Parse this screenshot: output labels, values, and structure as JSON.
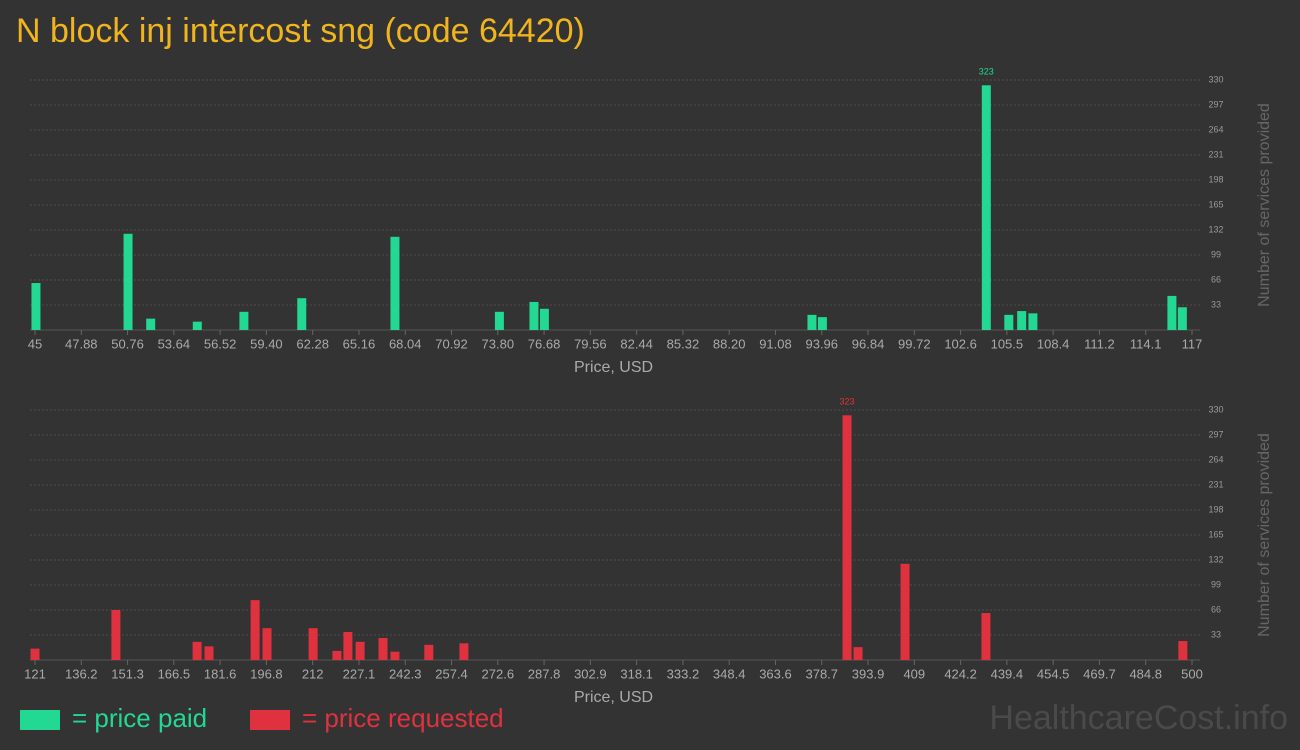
{
  "title": "N block inj intercost sng (code 64420)",
  "watermark": "HealthcareCost.info",
  "chart_data": [
    {
      "type": "bar",
      "xlabel": "Price, USD",
      "ylabel": "Number of services provided",
      "x": [
        45.06,
        50.79,
        52.2,
        55.1,
        58.0,
        61.6,
        67.4,
        73.9,
        76.05,
        76.7,
        93.35,
        94.0,
        104.2,
        105.6,
        106.4,
        107.1,
        115.75,
        116.4
      ],
      "series": [
        {
          "name": "= price paid",
          "color": "#22d892",
          "values": [
            62,
            127,
            15,
            11,
            24,
            42,
            123,
            24,
            37,
            28,
            20,
            17,
            323,
            20,
            25,
            22,
            45,
            30
          ]
        }
      ],
      "xlim": [
        45,
        117
      ],
      "xticks": [
        45,
        47.88,
        50.76,
        53.64,
        56.52,
        {
          "value": 59.4,
          "label": "59.40"
        },
        62.28,
        65.16,
        68.04,
        70.92,
        {
          "value": 73.8,
          "label": "73.80"
        },
        76.68,
        79.56,
        82.44,
        85.32,
        {
          "value": 88.2,
          "label": "88.20"
        },
        91.08,
        93.96,
        96.84,
        99.72,
        102.6,
        {
          "value": 105.48,
          "label": "105.5"
        },
        {
          "value": 108.36,
          "label": "108.4"
        },
        {
          "value": 111.24,
          "label": "111.2"
        },
        {
          "value": 114.12,
          "label": "114.1"
        },
        117
      ],
      "ylim": [
        0,
        330
      ],
      "yticks": [
        33,
        66,
        99,
        132,
        165,
        198,
        231,
        264,
        297,
        330
      ],
      "grid": true
    },
    {
      "type": "bar",
      "xlabel": "Price, USD",
      "ylabel": "Number of services provided",
      "x": [
        121,
        147.5,
        174.1,
        178,
        193.1,
        197,
        212.1,
        219.9,
        223.5,
        227.5,
        235,
        238.9,
        250,
        261.5,
        387,
        390.6,
        406,
        432.5,
        497
      ],
      "series": [
        {
          "name": "= price requested",
          "color": "#e0313f",
          "values": [
            15,
            66,
            24,
            18,
            79,
            42,
            42,
            12,
            37,
            24,
            29,
            11,
            20,
            22,
            323,
            17,
            127,
            62,
            25
          ]
        }
      ],
      "xlim": [
        121,
        500
      ],
      "xticks": [
        121,
        {
          "value": 136.16,
          "label": "136.2"
        },
        {
          "value": 151.32,
          "label": "151.3"
        },
        {
          "value": 166.48,
          "label": "166.5"
        },
        {
          "value": 181.64,
          "label": "181.6"
        },
        196.8,
        {
          "value": 211.96,
          "label": "212"
        },
        {
          "value": 227.12,
          "label": "227.1"
        },
        {
          "value": 242.28,
          "label": "242.3"
        },
        {
          "value": 257.44,
          "label": "257.4"
        },
        272.6,
        {
          "value": 287.76,
          "label": "287.8"
        },
        {
          "value": 302.92,
          "label": "302.9"
        },
        {
          "value": 318.08,
          "label": "318.1"
        },
        {
          "value": 333.24,
          "label": "333.2"
        },
        348.4,
        {
          "value": 363.56,
          "label": "363.6"
        },
        {
          "value": 378.72,
          "label": "378.7"
        },
        {
          "value": 393.88,
          "label": "393.9"
        },
        {
          "value": 409.04,
          "label": "409"
        },
        424.2,
        {
          "value": 439.36,
          "label": "439.4"
        },
        {
          "value": 454.52,
          "label": "454.5"
        },
        {
          "value": 469.68,
          "label": "469.7"
        },
        {
          "value": 484.84,
          "label": "484.8"
        },
        500
      ],
      "ylim": [
        0,
        330
      ],
      "yticks": [
        33,
        66,
        99,
        132,
        165,
        198,
        231,
        264,
        297,
        330
      ],
      "grid": true
    }
  ]
}
